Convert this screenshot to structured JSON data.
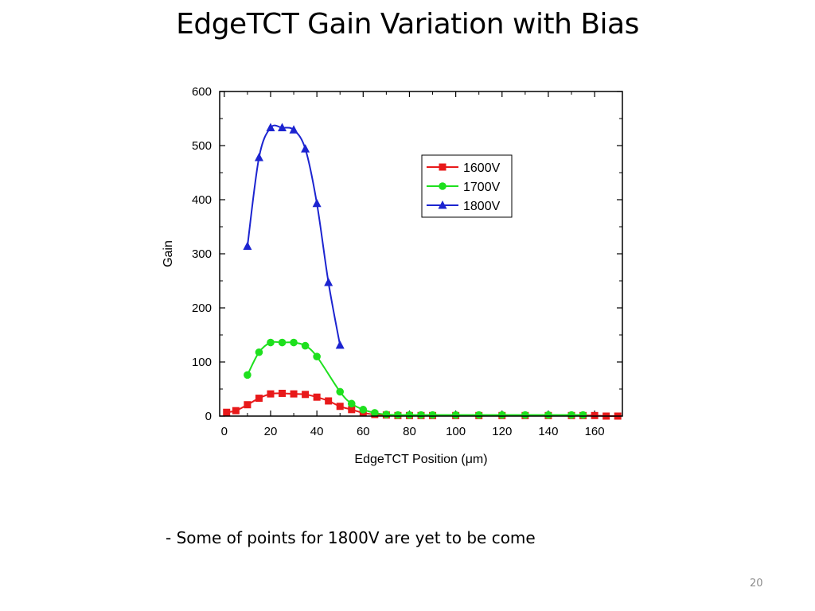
{
  "slide": {
    "title": "EdgeTCT Gain Variation with Bias",
    "note": "- Some of points for 1800V are yet to be come",
    "page_number": "20"
  },
  "chart_data": {
    "type": "line",
    "title": "",
    "xlabel": "EdgeTCT Position (μm)",
    "ylabel": "Gain",
    "xlim": [
      -2,
      172
    ],
    "ylim": [
      0,
      600
    ],
    "xticks": [
      0,
      20,
      40,
      60,
      80,
      100,
      120,
      140,
      160
    ],
    "yticks": [
      0,
      100,
      200,
      300,
      400,
      500,
      600
    ],
    "grid": false,
    "legend_position": "top-right",
    "series": [
      {
        "name": "1600V",
        "color": "#e8191a",
        "marker": "square",
        "x": [
          1,
          5,
          10,
          15,
          20,
          25,
          30,
          35,
          40,
          45,
          50,
          55,
          60,
          65,
          70,
          75,
          80,
          85,
          90,
          100,
          110,
          120,
          130,
          140,
          150,
          155,
          160,
          165,
          170
        ],
        "y": [
          7,
          10,
          21,
          33,
          41,
          42,
          41,
          40,
          35,
          28,
          18,
          12,
          6,
          3,
          2,
          1,
          1,
          1,
          1,
          1,
          1,
          1,
          1,
          1,
          1,
          1,
          1,
          0,
          0
        ]
      },
      {
        "name": "1700V",
        "color": "#1ee01e",
        "marker": "circle",
        "x": [
          10,
          15,
          20,
          25,
          30,
          35,
          40,
          50,
          55,
          60,
          65,
          70,
          75,
          80,
          85,
          90,
          100,
          110,
          120,
          130,
          140,
          150,
          155
        ],
        "y": [
          76,
          118,
          136,
          136,
          136,
          130,
          110,
          45,
          23,
          12,
          6,
          3,
          2,
          2,
          2,
          2,
          2,
          2,
          2,
          2,
          2,
          2,
          2
        ]
      },
      {
        "name": "1800V",
        "color": "#1c24d0",
        "marker": "triangle",
        "x": [
          10,
          15,
          20,
          25,
          30,
          35,
          40,
          45,
          50
        ],
        "y": [
          314,
          478,
          533,
          533,
          529,
          494,
          393,
          247,
          131
        ]
      }
    ]
  }
}
